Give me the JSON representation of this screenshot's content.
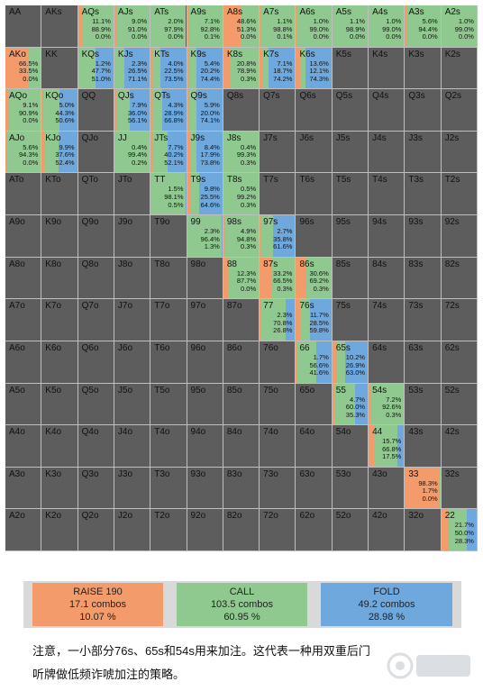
{
  "colors": {
    "raise": "#f39b6b",
    "call": "#8fc98f",
    "fold": "#6fa8dc",
    "empty": "#5d5d5d"
  },
  "ranks": [
    "A",
    "K",
    "Q",
    "J",
    "T",
    "9",
    "8",
    "7",
    "6",
    "5",
    "4",
    "3",
    "2"
  ],
  "range": {
    "AA": null,
    "AKs": null,
    "AQs": [
      11.1,
      88.9,
      0.0
    ],
    "AJs": [
      9.0,
      91.0,
      0.0
    ],
    "ATs": [
      2.0,
      97.9,
      0.0
    ],
    "A9s": [
      7.1,
      92.8,
      0.1
    ],
    "A8s": [
      48.6,
      51.3,
      0.0
    ],
    "A7s": [
      1.1,
      98.8,
      0.1
    ],
    "A6s": [
      1.0,
      99.0,
      0.0
    ],
    "A5s": [
      1.1,
      98.9,
      0.0
    ],
    "A4s": [
      1.0,
      99.0,
      0.0
    ],
    "A3s": [
      5.6,
      94.4,
      0.0
    ],
    "A2s": [
      1.0,
      99.0,
      0.0
    ],
    "AKo": [
      66.5,
      33.5,
      0.0
    ],
    "KK": null,
    "KQs": [
      1.2,
      47.7,
      51.0
    ],
    "KJs": [
      2.3,
      26.5,
      71.1
    ],
    "KTs": [
      4.0,
      22.5,
      73.5
    ],
    "K9s": [
      5.4,
      20.2,
      74.4
    ],
    "K8s": [
      20.8,
      78.9,
      0.3
    ],
    "K7s": [
      7.1,
      18.7,
      74.2
    ],
    "K6s": [
      13.6,
      12.1,
      74.3
    ],
    "K5s": null,
    "K4s": null,
    "K3s": null,
    "K2s": null,
    "AQo": [
      9.1,
      90.9,
      0.0
    ],
    "KQo": [
      5.0,
      44.3,
      50.6
    ],
    "QQ": null,
    "QJs": [
      7.9,
      36.0,
      56.1
    ],
    "QTs": [
      4.3,
      28.9,
      66.8
    ],
    "Q9s": [
      5.9,
      20.0,
      74.1
    ],
    "Q8s": null,
    "Q7s": null,
    "Q6s": null,
    "Q5s": null,
    "Q4s": null,
    "Q3s": null,
    "Q2s": null,
    "AJo": [
      5.6,
      94.3,
      0.0
    ],
    "KJo": [
      9.9,
      37.6,
      52.4
    ],
    "QJo": null,
    "JJ": [
      0.4,
      99.4,
      0.2
    ],
    "JTs": [
      7.7,
      40.2,
      52.1
    ],
    "J9s": [
      8.4,
      17.9,
      73.8
    ],
    "J8s": [
      0.4,
      99.3,
      0.3
    ],
    "J7s": null,
    "J6s": null,
    "J5s": null,
    "J4s": null,
    "J3s": null,
    "J2s": null,
    "ATo": null,
    "KTo": null,
    "QTo": null,
    "JTo": null,
    "TT": [
      1.5,
      98.1,
      0.5
    ],
    "T9s": [
      9.8,
      25.5,
      64.6
    ],
    "T8s": [
      0.5,
      99.2,
      0.3
    ],
    "T7s": null,
    "T6s": null,
    "T5s": null,
    "T4s": null,
    "T3s": null,
    "T2s": null,
    "A9o": null,
    "K9o": null,
    "Q9o": null,
    "J9o": null,
    "T9o": null,
    "99": [
      2.3,
      96.4,
      1.3
    ],
    "98s": [
      4.9,
      94.8,
      0.3
    ],
    "97s": [
      2.7,
      35.8,
      61.6
    ],
    "96s": null,
    "95s": null,
    "94s": null,
    "93s": null,
    "92s": null,
    "A8o": null,
    "K8o": null,
    "Q8o": null,
    "J8o": null,
    "T8o": null,
    "98o": null,
    "88": [
      12.3,
      87.7,
      0.0
    ],
    "87s": [
      33.2,
      66.5,
      0.3
    ],
    "86s": [
      30.6,
      69.2,
      0.3
    ],
    "85s": null,
    "84s": null,
    "83s": null,
    "82s": null,
    "A7o": null,
    "K7o": null,
    "Q7o": null,
    "J7o": null,
    "T7o": null,
    "97o": null,
    "87o": null,
    "77": [
      2.3,
      70.8,
      26.8
    ],
    "76s": [
      11.7,
      28.5,
      59.8
    ],
    "75s": null,
    "74s": null,
    "73s": null,
    "72s": null,
    "A6o": null,
    "K6o": null,
    "Q6o": null,
    "J6o": null,
    "T6o": null,
    "96o": null,
    "86o": null,
    "76o": null,
    "66": [
      1.7,
      56.6,
      41.6
    ],
    "65s": [
      10.2,
      26.9,
      63.0
    ],
    "64s": null,
    "63s": null,
    "62s": null,
    "A5o": null,
    "K5o": null,
    "Q5o": null,
    "J5o": null,
    "T5o": null,
    "95o": null,
    "85o": null,
    "75o": null,
    "65o": null,
    "55": [
      4.7,
      60.0,
      35.3
    ],
    "54s": [
      7.2,
      92.6,
      0.3
    ],
    "53s": null,
    "52s": null,
    "A4o": null,
    "K4o": null,
    "Q4o": null,
    "J4o": null,
    "T4o": null,
    "94o": null,
    "84o": null,
    "74o": null,
    "64o": null,
    "54o": null,
    "44": [
      15.7,
      66.8,
      17.5
    ],
    "43s": null,
    "42s": null,
    "A3o": null,
    "K3o": null,
    "Q3o": null,
    "J3o": null,
    "T3o": null,
    "93o": null,
    "83o": null,
    "73o": null,
    "63o": null,
    "53o": null,
    "43o": null,
    "33": [
      98.3,
      1.7,
      0.0
    ],
    "32s": null,
    "A2o": null,
    "K2o": null,
    "Q2o": null,
    "J2o": null,
    "T2o": null,
    "92o": null,
    "82o": null,
    "72o": null,
    "62o": null,
    "52o": null,
    "42o": null,
    "32o": null,
    "22": [
      21.7,
      50.0,
      28.3
    ]
  },
  "legend": {
    "raise": {
      "title": "RAISE 190",
      "combos": "17.1 combos",
      "pct": "10.07 %"
    },
    "call": {
      "title": "CALL",
      "combos": "103.5 combos",
      "pct": "60.95 %"
    },
    "fold": {
      "title": "FOLD",
      "combos": "49.2 combos",
      "pct": "28.98 %"
    }
  },
  "caption": {
    "line1": "注意，一小部分76s、65s和54s用来加注。这代表一种用双重后门",
    "line2": "听牌做低频诈唬加注的策略。"
  }
}
